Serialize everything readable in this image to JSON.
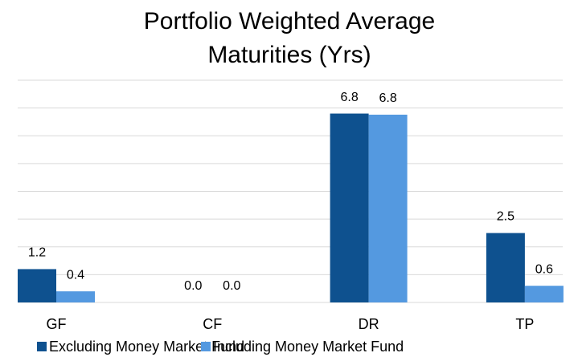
{
  "chart_data": {
    "type": "bar",
    "title": [
      "Portfolio Weighted Average",
      "Maturities (Yrs)"
    ],
    "categories": [
      "GF",
      "CF",
      "DR",
      "TP"
    ],
    "series": [
      {
        "name": "Excluding Money Market Fund",
        "color": "#0e518f",
        "values": [
          1.2,
          0.0,
          6.8,
          2.5
        ],
        "value_labels": [
          "1.2",
          "0.0",
          "6.8",
          "2.5"
        ]
      },
      {
        "name": "Including Money Market Fund",
        "color": "#5499e0",
        "values": [
          0.4,
          0.0,
          6.76,
          0.6
        ],
        "value_labels": [
          "0.4",
          "0.0",
          "6.8",
          "0.6"
        ]
      }
    ],
    "ylim": [
      0,
      8
    ],
    "yticks": [
      0,
      1,
      2,
      3,
      4,
      5,
      6,
      7,
      8
    ],
    "grid": true,
    "legend": "bottom"
  }
}
